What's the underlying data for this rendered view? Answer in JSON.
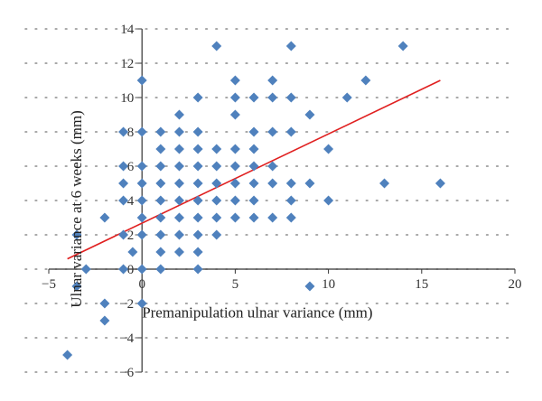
{
  "chart_data": {
    "type": "scatter",
    "title": "",
    "xlabel": "Premanipulation ulnar variance (mm)",
    "ylabel": "Ulnar variance at 6 weeks (mm)",
    "xlim": [
      -5,
      20
    ],
    "ylim": [
      -6,
      14
    ],
    "x_ticks": [
      -5,
      0,
      5,
      10,
      15,
      20
    ],
    "y_ticks": [
      -6,
      -4,
      -2,
      0,
      2,
      4,
      6,
      8,
      10,
      12,
      14
    ],
    "x_tick_labels": [
      "−5",
      "0",
      "5",
      "10",
      "15",
      "20"
    ],
    "y_tick_labels": [
      "−6",
      "−4",
      "−2",
      "0",
      "2",
      "4",
      "6",
      "8",
      "10",
      "12",
      "14"
    ],
    "grid": "dotted",
    "legend": "none",
    "colors": {
      "points": "#4f81bd",
      "trendline": "#e02020",
      "axis": "#333333",
      "grid": "#8c8c8c"
    },
    "series": [
      {
        "marker": "diamond",
        "points": [
          [
            -4,
            -5
          ],
          [
            -3.5,
            -1
          ],
          [
            -3.5,
            2
          ],
          [
            -3,
            0
          ],
          [
            -2,
            -3
          ],
          [
            -2,
            -2
          ],
          [
            -2,
            3
          ],
          [
            -1,
            0
          ],
          [
            -1,
            2
          ],
          [
            -1,
            4
          ],
          [
            -1,
            5
          ],
          [
            -1,
            6
          ],
          [
            -1,
            8
          ],
          [
            -0.5,
            1
          ],
          [
            0,
            -2
          ],
          [
            0,
            0
          ],
          [
            0,
            2
          ],
          [
            0,
            3
          ],
          [
            0,
            4
          ],
          [
            0,
            5
          ],
          [
            0,
            6
          ],
          [
            0,
            8
          ],
          [
            0,
            11
          ],
          [
            1,
            0
          ],
          [
            1,
            1
          ],
          [
            1,
            2
          ],
          [
            1,
            3
          ],
          [
            1,
            4
          ],
          [
            1,
            5
          ],
          [
            1,
            6
          ],
          [
            1,
            7
          ],
          [
            1,
            8
          ],
          [
            2,
            1
          ],
          [
            2,
            2
          ],
          [
            2,
            3
          ],
          [
            2,
            4
          ],
          [
            2,
            5
          ],
          [
            2,
            6
          ],
          [
            2,
            7
          ],
          [
            2,
            8
          ],
          [
            2,
            9
          ],
          [
            3,
            0
          ],
          [
            3,
            1
          ],
          [
            3,
            2
          ],
          [
            3,
            3
          ],
          [
            3,
            4
          ],
          [
            3,
            5
          ],
          [
            3,
            6
          ],
          [
            3,
            7
          ],
          [
            3,
            8
          ],
          [
            3,
            10
          ],
          [
            4,
            2
          ],
          [
            4,
            3
          ],
          [
            4,
            4
          ],
          [
            4,
            5
          ],
          [
            4,
            6
          ],
          [
            4,
            7
          ],
          [
            4,
            13
          ],
          [
            5,
            3
          ],
          [
            5,
            4
          ],
          [
            5,
            5
          ],
          [
            5,
            6
          ],
          [
            5,
            7
          ],
          [
            5,
            9
          ],
          [
            5,
            10
          ],
          [
            5,
            11
          ],
          [
            6,
            3
          ],
          [
            6,
            4
          ],
          [
            6,
            5
          ],
          [
            6,
            6
          ],
          [
            6,
            7
          ],
          [
            6,
            8
          ],
          [
            6,
            10
          ],
          [
            7,
            3
          ],
          [
            7,
            5
          ],
          [
            7,
            6
          ],
          [
            7,
            8
          ],
          [
            7,
            10
          ],
          [
            7,
            11
          ],
          [
            8,
            3
          ],
          [
            8,
            4
          ],
          [
            8,
            5
          ],
          [
            8,
            8
          ],
          [
            8,
            10
          ],
          [
            8,
            13
          ],
          [
            9,
            -1
          ],
          [
            9,
            5
          ],
          [
            9,
            9
          ],
          [
            10,
            4
          ],
          [
            10,
            7
          ],
          [
            11,
            10
          ],
          [
            12,
            11
          ],
          [
            13,
            5
          ],
          [
            14,
            13
          ],
          [
            16,
            5
          ]
        ]
      }
    ],
    "trendline": {
      "x": [
        -4,
        16
      ],
      "y": [
        0.6,
        11
      ]
    }
  }
}
